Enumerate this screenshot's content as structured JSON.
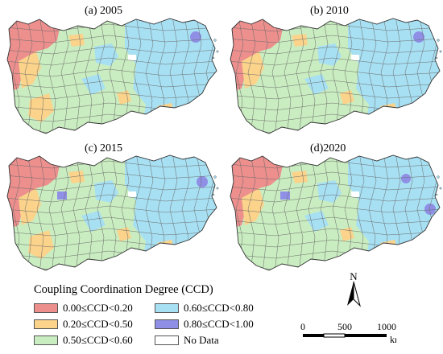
{
  "panels": [
    {
      "title": "(a) 2005"
    },
    {
      "title": "(b) 2010"
    },
    {
      "title": "(c) 2015"
    },
    {
      "title": "(d)2020"
    }
  ],
  "legend": {
    "title": "Coupling Coordination Degree (CCD)",
    "classes": [
      {
        "label": "0.00≤CCD<0.20",
        "color": "#ec8f8d"
      },
      {
        "label": "0.60≤CCD<0.80",
        "color": "#a7e0f3"
      },
      {
        "label": "0.20≤CCD<0.50",
        "color": "#fbd38b"
      },
      {
        "label": "0.80≤CCD<1.00",
        "color": "#8f8fe6"
      },
      {
        "label": "0.50≤CCD<0.60",
        "color": "#c9edc0"
      },
      {
        "label": "No Data",
        "color": "#ffffff"
      }
    ]
  },
  "north_arrow": {
    "label": "N"
  },
  "scale_bar": {
    "ticks": [
      "0",
      "500",
      "1000"
    ],
    "unit": "km"
  }
}
